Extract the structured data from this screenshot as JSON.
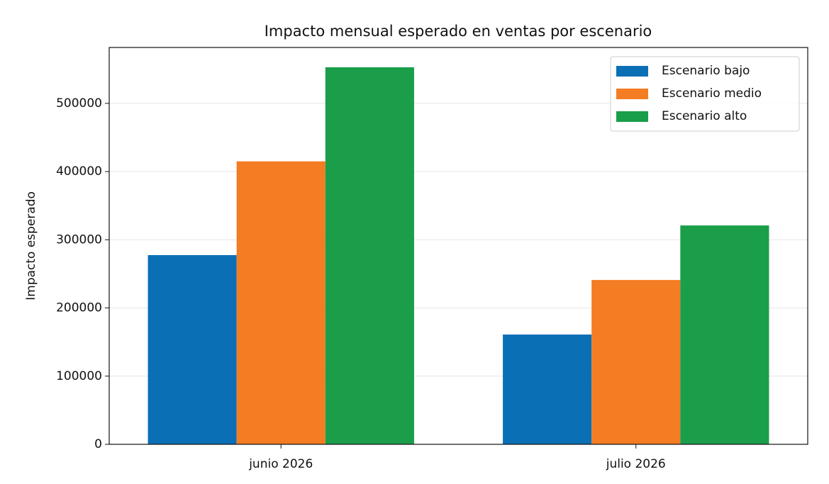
{
  "chart_data": {
    "type": "bar",
    "title": "Impacto mensual esperado en ventas por escenario",
    "ylabel": "Impacto esperado",
    "categories": [
      "junio 2026",
      "julio 2026"
    ],
    "series": [
      {
        "name": "Escenario bajo",
        "color": "#0b6fb5",
        "values": [
          277500,
          161000
        ]
      },
      {
        "name": "Escenario medio",
        "color": "#f47c23",
        "values": [
          415000,
          241000
        ]
      },
      {
        "name": "Escenario alto",
        "color": "#1a9e4a",
        "values": [
          553000,
          321000
        ]
      }
    ],
    "ylim": [
      0,
      582000
    ],
    "yticks": [
      0,
      100000,
      200000,
      300000,
      400000,
      500000
    ],
    "grid": true,
    "legend": "upper right"
  }
}
